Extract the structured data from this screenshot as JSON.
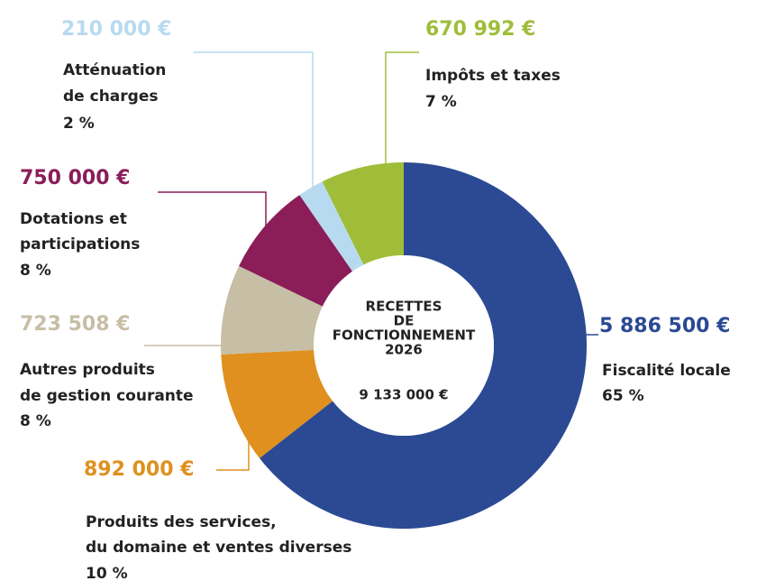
{
  "chart_data": {
    "type": "donut",
    "title": [
      "RECETTES",
      "DE",
      "FONCTIONNEMENT",
      "2026"
    ],
    "total": 9133000,
    "total_label": "9 133 000 €",
    "categories": [
      [
        "Fiscalité locale"
      ],
      [
        "Produits des services,",
        "du domaine et ventes diverses"
      ],
      [
        "Autres produits",
        "de gestion courante"
      ],
      [
        "Dotations et",
        "participations"
      ],
      [
        "Atténuation",
        "de charges"
      ],
      [
        "Impôts et taxes"
      ]
    ],
    "values": [
      5886500,
      892000,
      723508,
      750000,
      210000,
      670992
    ],
    "value_labels": [
      "5 886 500 €",
      "892 000 €",
      "723 508 €",
      "750 000 €",
      "210 000 €",
      "670 992 €"
    ],
    "percents": [
      65,
      10,
      8,
      8,
      2,
      7
    ],
    "percent_labels": [
      "65 %",
      "10 %",
      "8 %",
      "8 %",
      "2 %",
      "7 %"
    ],
    "colors": [
      "#2b4a93",
      "#df901f",
      "#c7bea6",
      "#8b1d59",
      "#b8daf0",
      "#a0bd3a"
    ]
  }
}
